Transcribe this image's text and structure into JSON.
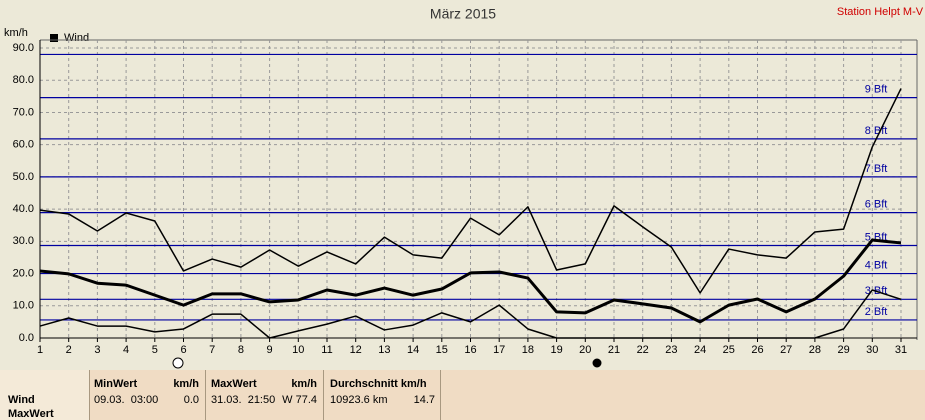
{
  "chart_data": {
    "type": "line",
    "title": "März 2015",
    "station": "Station Helpt M-V",
    "y_unit": "km/h",
    "legend": "Wind",
    "x": [
      1,
      2,
      3,
      4,
      5,
      6,
      7,
      8,
      9,
      10,
      11,
      12,
      13,
      14,
      15,
      16,
      17,
      18,
      19,
      20,
      21,
      22,
      23,
      24,
      25,
      26,
      27,
      28,
      29,
      30,
      31
    ],
    "xlim": [
      1,
      31
    ],
    "xticks": [
      1,
      2,
      3,
      4,
      5,
      6,
      7,
      8,
      9,
      10,
      11,
      12,
      13,
      14,
      15,
      16,
      17,
      18,
      19,
      20,
      21,
      22,
      23,
      24,
      25,
      26,
      27,
      28,
      29,
      30,
      31
    ],
    "ylim": [
      0,
      90
    ],
    "yticks": [
      {
        "value": 0,
        "label": "0.0"
      },
      {
        "value": 10,
        "label": "10.0"
      },
      {
        "value": 20,
        "label": "20.0"
      },
      {
        "value": 30,
        "label": "30.0"
      },
      {
        "value": 40,
        "label": "40.0"
      },
      {
        "value": 50,
        "label": "50.0"
      },
      {
        "value": 60,
        "label": "60.0"
      },
      {
        "value": 70,
        "label": "70.0"
      },
      {
        "value": 80,
        "label": "80.0"
      },
      {
        "value": 90,
        "label": "90.0"
      }
    ],
    "grid": true,
    "bft_color": "#0000a0",
    "bft_lines": [
      {
        "value": 5.6,
        "label": "2 Bft"
      },
      {
        "value": 12,
        "label": "3 Bft"
      },
      {
        "value": 20,
        "label": "4 Bft"
      },
      {
        "value": 28.7,
        "label": "5 Bft"
      },
      {
        "value": 38.9,
        "label": "6 Bft"
      },
      {
        "value": 50,
        "label": "7 Bft"
      },
      {
        "value": 61.8,
        "label": "8 Bft"
      },
      {
        "value": 74.6,
        "label": "9 Bft"
      },
      {
        "value": 88
      }
    ],
    "series": [
      {
        "color": "#000000",
        "values": [
          39.7,
          38.5,
          33.2,
          38.8,
          36.3,
          20.8,
          24.5,
          22,
          27.3,
          22.3,
          26.7,
          23,
          31.3,
          25.8,
          24.8,
          37.2,
          32,
          40.7,
          21.1,
          23,
          41,
          34.5,
          28.2,
          14,
          27.6,
          25.8,
          24.8,
          32.9,
          33.8,
          59.3,
          77.4
        ]
      },
      {
        "color": "#000000",
        "values": [
          20.8,
          19.9,
          17,
          16.4,
          13.3,
          10.2,
          13.7,
          13.7,
          11.2,
          11.8,
          14.9,
          13.3,
          15.5,
          13.3,
          15.2,
          20.2,
          20.5,
          18.6,
          8.1,
          7.8,
          11.8,
          10.6,
          9.3,
          5,
          10.2,
          12.1,
          8.1,
          12.1,
          19.2,
          30.4,
          29.5
        ]
      },
      {
        "color": "#000000",
        "values": [
          3.7,
          6.2,
          3.7,
          3.7,
          1.9,
          2.8,
          7.4,
          7.4,
          0,
          2.2,
          4.3,
          6.8,
          2.5,
          4,
          7.8,
          5,
          10.2,
          2.8,
          0,
          0,
          0,
          0,
          0,
          0,
          0,
          0,
          0,
          0,
          2.8,
          14.9,
          12
        ]
      }
    ]
  },
  "summary_table": {
    "columns": [
      {
        "title": "MinWert",
        "unit": "km/h"
      },
      {
        "title": "MaxWert",
        "unit": "km/h"
      },
      {
        "title": "Durchschnitt km/h"
      }
    ],
    "rows": [
      {
        "label": "Wind",
        "cells": [
          [
            "09.03.  03:00",
            "0.0"
          ],
          [
            "31.03.  21:50",
            "W 77.4"
          ],
          [
            "10923.6 km",
            "14.7"
          ]
        ]
      },
      {
        "label": "MaxWert"
      }
    ]
  }
}
